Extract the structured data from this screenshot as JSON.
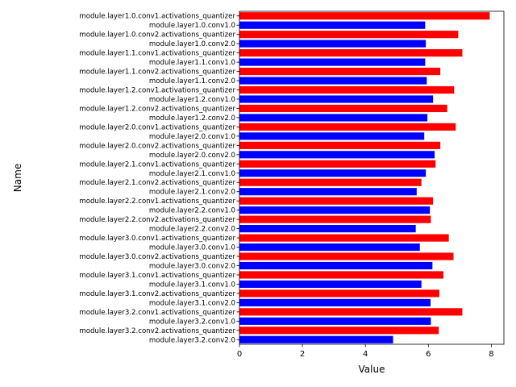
{
  "chart_data": {
    "type": "bar",
    "orientation": "horizontal",
    "title": "",
    "xlabel": "Value",
    "ylabel": "Name",
    "xlim": [
      0,
      8.4
    ],
    "xticks": [
      0,
      2,
      4,
      6,
      8
    ],
    "grid": false,
    "colors": {
      "activations_quantizer": "#ff0000",
      "conv": "#0000ff"
    },
    "categories": [
      "module.layer1.0.conv1.activations_quantizer",
      "module.layer1.0.conv1.0",
      "module.layer1.0.conv2.activations_quantizer",
      "module.layer1.0.conv2.0",
      "module.layer1.1.conv1.activations_quantizer",
      "module.layer1.1.conv1.0",
      "module.layer1.1.conv2.activations_quantizer",
      "module.layer1.1.conv2.0",
      "module.layer1.2.conv1.activations_quantizer",
      "module.layer1.2.conv1.0",
      "module.layer1.2.conv2.activations_quantizer",
      "module.layer1.2.conv2.0",
      "module.layer2.0.conv1.activations_quantizer",
      "module.layer2.0.conv1.0",
      "module.layer2.0.conv2.activations_quantizer",
      "module.layer2.0.conv2.0",
      "module.layer2.1.conv1.activations_quantizer",
      "module.layer2.1.conv1.0",
      "module.layer2.1.conv2.activations_quantizer",
      "module.layer2.1.conv2.0",
      "module.layer2.2.conv1.activations_quantizer",
      "module.layer2.2.conv1.0",
      "module.layer2.2.conv2.activations_quantizer",
      "module.layer2.2.conv2.0",
      "module.layer3.0.conv1.activations_quantizer",
      "module.layer3.0.conv1.0",
      "module.layer3.0.conv2.activations_quantizer",
      "module.layer3.0.conv2.0",
      "module.layer3.1.conv1.activations_quantizer",
      "module.layer3.1.conv1.0",
      "module.layer3.1.conv2.activations_quantizer",
      "module.layer3.1.conv2.0",
      "module.layer3.2.conv1.activations_quantizer",
      "module.layer3.2.conv1.0",
      "module.layer3.2.conv2.activations_quantizer",
      "module.layer3.2.conv2.0"
    ],
    "values": [
      7.95,
      5.9,
      6.95,
      5.92,
      7.08,
      5.9,
      6.38,
      5.95,
      6.82,
      6.15,
      6.6,
      5.97,
      6.87,
      5.87,
      6.38,
      6.2,
      6.23,
      5.92,
      5.78,
      5.63,
      6.15,
      6.05,
      6.08,
      5.6,
      6.65,
      5.73,
      6.8,
      6.13,
      6.48,
      5.78,
      6.35,
      6.07,
      7.08,
      6.08,
      6.33,
      4.88
    ]
  }
}
